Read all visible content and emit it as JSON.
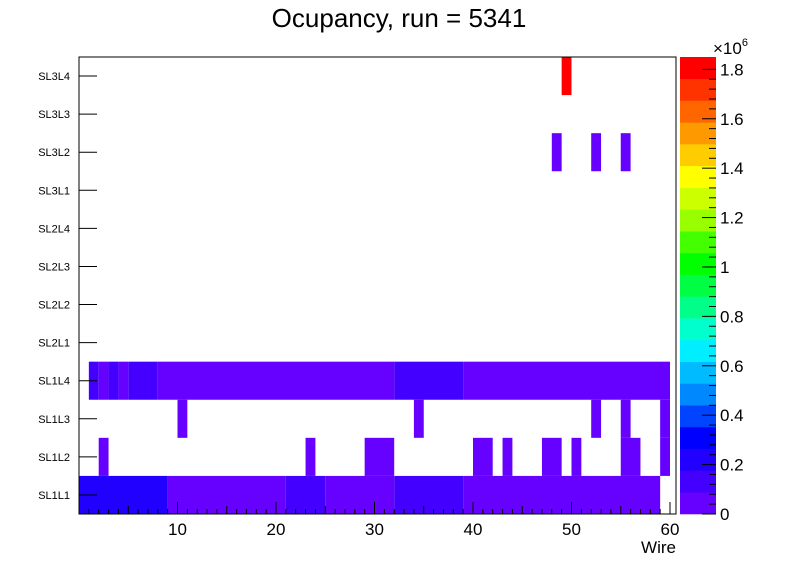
{
  "chart_data": {
    "type": "heatmap",
    "title": "Ocupancy, run = 5341",
    "xlabel": "Wire",
    "ylabel": "",
    "x_range": [
      0,
      60
    ],
    "x_ticks": [
      10,
      20,
      30,
      40,
      50,
      60
    ],
    "rows": [
      "SL1L1",
      "SL1L2",
      "SL1L3",
      "SL1L4",
      "SL2L1",
      "SL2L2",
      "SL2L3",
      "SL2L4",
      "SL3L1",
      "SL3L2",
      "SL3L3",
      "SL3L4"
    ],
    "colorbar": {
      "min": 0,
      "max": 1.85,
      "multiplier_base": "×10",
      "multiplier_exp": "6",
      "ticks": [
        0,
        0.2,
        0.4,
        0.6,
        0.8,
        1,
        1.2,
        1.4,
        1.6,
        1.8
      ],
      "tick_labels": [
        "0",
        "0.2",
        "0.4",
        "0.6",
        "0.8",
        "1",
        "1.2",
        "1.4",
        "1.6",
        "1.8"
      ]
    },
    "palette": [
      "#6600ff",
      "#4400ff",
      "#2200ff",
      "#0000ff",
      "#0044ff",
      "#0088ff",
      "#00bbff",
      "#00eeff",
      "#00ffcc",
      "#00ff88",
      "#00ff44",
      "#00ff00",
      "#44ff00",
      "#99ff00",
      "#ccff00",
      "#ffff00",
      "#ffcc00",
      "#ff9900",
      "#ff6600",
      "#ff3300",
      "#ff0000"
    ],
    "segments": [
      {
        "row": "SL1L1",
        "x0": 0,
        "x1": 9,
        "v": 0.18
      },
      {
        "row": "SL1L1",
        "x0": 9,
        "x1": 21,
        "v": 0.07
      },
      {
        "row": "SL1L1",
        "x0": 21,
        "x1": 25,
        "v": 0.17
      },
      {
        "row": "SL1L1",
        "x0": 25,
        "x1": 32,
        "v": 0.07
      },
      {
        "row": "SL1L1",
        "x0": 32,
        "x1": 39,
        "v": 0.17
      },
      {
        "row": "SL1L1",
        "x0": 39,
        "x1": 59,
        "v": 0.07
      },
      {
        "row": "SL1L2",
        "x0": 2,
        "x1": 3,
        "v": 0.06
      },
      {
        "row": "SL1L2",
        "x0": 23,
        "x1": 24,
        "v": 0.06
      },
      {
        "row": "SL1L2",
        "x0": 29,
        "x1": 32,
        "v": 0.06
      },
      {
        "row": "SL1L2",
        "x0": 40,
        "x1": 42,
        "v": 0.06
      },
      {
        "row": "SL1L2",
        "x0": 43,
        "x1": 44,
        "v": 0.06
      },
      {
        "row": "SL1L2",
        "x0": 47,
        "x1": 49,
        "v": 0.06
      },
      {
        "row": "SL1L2",
        "x0": 50,
        "x1": 51,
        "v": 0.06
      },
      {
        "row": "SL1L2",
        "x0": 55,
        "x1": 57,
        "v": 0.06
      },
      {
        "row": "SL1L2",
        "x0": 59,
        "x1": 60,
        "v": 0.06
      },
      {
        "row": "SL1L3",
        "x0": 10,
        "x1": 11,
        "v": 0.06
      },
      {
        "row": "SL1L3",
        "x0": 34,
        "x1": 35,
        "v": 0.06
      },
      {
        "row": "SL1L3",
        "x0": 52,
        "x1": 53,
        "v": 0.06
      },
      {
        "row": "SL1L3",
        "x0": 55,
        "x1": 56,
        "v": 0.06
      },
      {
        "row": "SL1L3",
        "x0": 59,
        "x1": 60,
        "v": 0.06
      },
      {
        "row": "SL1L4",
        "x0": 1,
        "x1": 2,
        "v": 0.15
      },
      {
        "row": "SL1L4",
        "x0": 2,
        "x1": 3,
        "v": 0.07
      },
      {
        "row": "SL1L4",
        "x0": 3,
        "x1": 4,
        "v": 0.15
      },
      {
        "row": "SL1L4",
        "x0": 4,
        "x1": 5,
        "v": 0.07
      },
      {
        "row": "SL1L4",
        "x0": 5,
        "x1": 8,
        "v": 0.15
      },
      {
        "row": "SL1L4",
        "x0": 8,
        "x1": 32,
        "v": 0.07
      },
      {
        "row": "SL1L4",
        "x0": 32,
        "x1": 39,
        "v": 0.15
      },
      {
        "row": "SL1L4",
        "x0": 39,
        "x1": 60,
        "v": 0.07
      },
      {
        "row": "SL3L2",
        "x0": 48,
        "x1": 49,
        "v": 0.06
      },
      {
        "row": "SL3L2",
        "x0": 52,
        "x1": 53,
        "v": 0.06
      },
      {
        "row": "SL3L2",
        "x0": 55,
        "x1": 56,
        "v": 0.06
      },
      {
        "row": "SL3L4",
        "x0": 49,
        "x1": 50,
        "v": 1.85
      }
    ]
  }
}
